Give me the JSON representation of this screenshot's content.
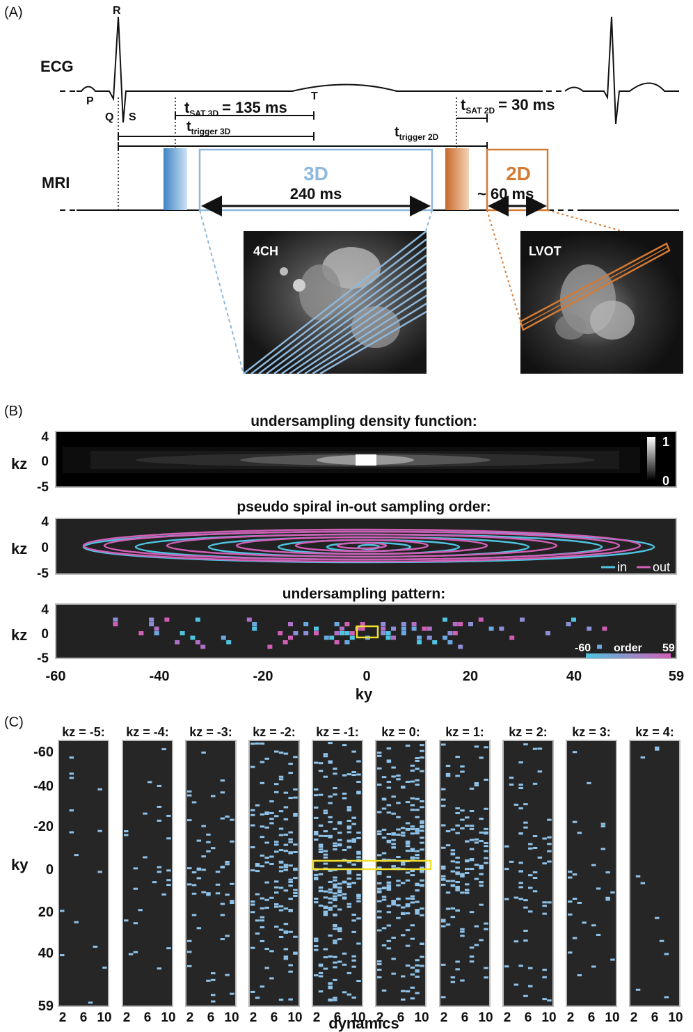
{
  "panel_a": {
    "label": "(A)",
    "ecg_label": "ECG",
    "mri_label": "MRI",
    "waves": {
      "p": "P",
      "q": "Q",
      "r": "R",
      "s": "S",
      "t": "T"
    },
    "tsat3d": {
      "sym": "t",
      "sub": "SAT 3D",
      "value": "= 135 ms"
    },
    "tsat2d": {
      "sym": "t",
      "sub": "SAT 2D",
      "value": "= 30 ms"
    },
    "ttrig3d": {
      "sym": "t",
      "sub": "trigger 3D"
    },
    "ttrig2d": {
      "sym": "t",
      "sub": "trigger 2D"
    },
    "block3d": {
      "label": "3D",
      "duration": "240 ms"
    },
    "block2d": {
      "label": "2D",
      "duration": "~ 60 ms"
    },
    "img_4ch": "4CH",
    "img_lvot": "LVOT",
    "colors": {
      "blue": "#8fb8dc",
      "blue_dark": "#3d84c6",
      "orange": "#d47a33"
    }
  },
  "panel_b": {
    "label": "(B)",
    "density_title": "undersampling density function:",
    "spiral_title": "pseudo spiral in-out sampling order:",
    "pattern_title": "undersampling pattern:",
    "ylabel": "kz",
    "xlabel": "ky",
    "yticks": [
      "4",
      "0",
      "-5"
    ],
    "xticks": [
      "-60",
      "-40",
      "-20",
      "0",
      "20",
      "40",
      "59"
    ],
    "colorbar_max": "1",
    "colorbar_min": "0",
    "legend_in": "in",
    "legend_out": "out",
    "order_min": "-60",
    "order_label": "order",
    "order_max": "59",
    "colors": {
      "in": "#4fc3e0",
      "out": "#d25fb6"
    }
  },
  "panel_c": {
    "label": "(C)",
    "kz_titles": [
      "kz = -5:",
      "kz = -4:",
      "kz = -3:",
      "kz = -2:",
      "kz = -1:",
      "kz = 0:",
      "kz = 1:",
      "kz = 2:",
      "kz = 3:",
      "kz = 4:"
    ],
    "ylabel": "ky",
    "yticks": [
      "-60",
      "-40",
      "-20",
      "0",
      "20",
      "40",
      "59"
    ],
    "xticks": [
      "2",
      "6",
      "10"
    ],
    "xlabel": "dynamics"
  }
}
